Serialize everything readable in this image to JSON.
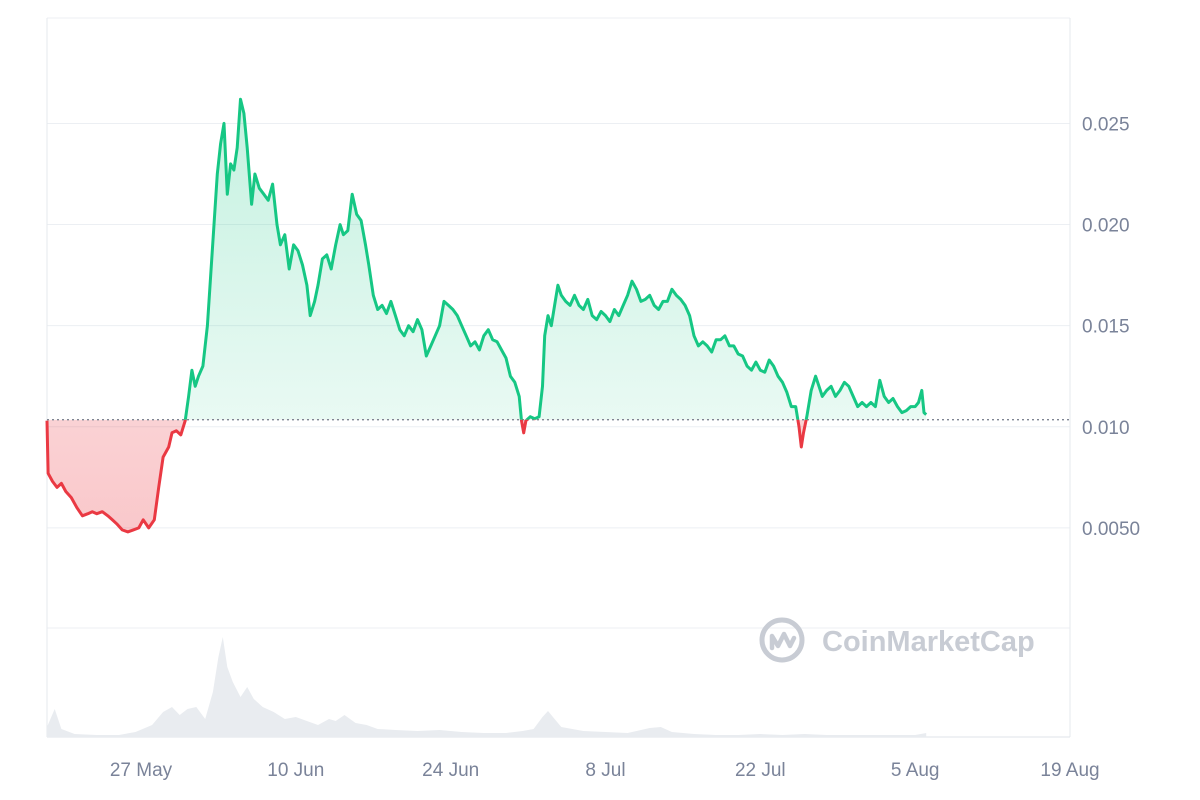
{
  "chart_data": {
    "type": "area",
    "baseline": 0.01035,
    "ylim": [
      0,
      0.0295
    ],
    "y_ticks": [
      {
        "value": 0.025,
        "label": "0.025"
      },
      {
        "value": 0.02,
        "label": "0.020"
      },
      {
        "value": 0.015,
        "label": "0.015"
      },
      {
        "value": 0.01,
        "label": "0.010"
      },
      {
        "value": 0.005,
        "label": "0.0050"
      }
    ],
    "x_ticks": [
      {
        "day": 6,
        "label": "27 May"
      },
      {
        "day": 20,
        "label": "10 Jun"
      },
      {
        "day": 34,
        "label": "24 Jun"
      },
      {
        "day": 48,
        "label": "8 Jul"
      },
      {
        "day": 62,
        "label": "22 Jul"
      },
      {
        "day": 76,
        "label": "5 Aug"
      },
      {
        "day": 90,
        "label": "19 Aug"
      }
    ],
    "x_range_days": [
      -2.5,
      90.0
    ],
    "price_series": [
      [
        -2.5,
        0.0103
      ],
      [
        -2.4,
        0.0077
      ],
      [
        -2.0,
        0.0073
      ],
      [
        -1.6,
        0.007
      ],
      [
        -1.2,
        0.0072
      ],
      [
        -0.8,
        0.0068
      ],
      [
        -0.3,
        0.0065
      ],
      [
        0.2,
        0.006
      ],
      [
        0.7,
        0.0056
      ],
      [
        1.2,
        0.0057
      ],
      [
        1.6,
        0.0058
      ],
      [
        2.0,
        0.0057
      ],
      [
        2.5,
        0.0058
      ],
      [
        3.0,
        0.0056
      ],
      [
        3.4,
        0.0054
      ],
      [
        3.8,
        0.0052
      ],
      [
        4.3,
        0.0049
      ],
      [
        4.8,
        0.0048
      ],
      [
        5.3,
        0.0049
      ],
      [
        5.8,
        0.005
      ],
      [
        6.2,
        0.0054
      ],
      [
        6.7,
        0.005
      ],
      [
        7.2,
        0.0054
      ],
      [
        7.6,
        0.007
      ],
      [
        8.0,
        0.0085
      ],
      [
        8.5,
        0.009
      ],
      [
        8.8,
        0.0097
      ],
      [
        9.2,
        0.0098
      ],
      [
        9.6,
        0.0096
      ],
      [
        10.0,
        0.0103
      ],
      [
        10.3,
        0.0115
      ],
      [
        10.6,
        0.0128
      ],
      [
        10.9,
        0.012
      ],
      [
        11.2,
        0.0125
      ],
      [
        11.6,
        0.013
      ],
      [
        12.0,
        0.015
      ],
      [
        12.3,
        0.0175
      ],
      [
        12.6,
        0.02
      ],
      [
        12.9,
        0.0225
      ],
      [
        13.2,
        0.024
      ],
      [
        13.5,
        0.025
      ],
      [
        13.8,
        0.0215
      ],
      [
        14.1,
        0.023
      ],
      [
        14.4,
        0.0227
      ],
      [
        14.7,
        0.0238
      ],
      [
        15.0,
        0.0262
      ],
      [
        15.3,
        0.0255
      ],
      [
        15.6,
        0.0238
      ],
      [
        16.0,
        0.021
      ],
      [
        16.3,
        0.0225
      ],
      [
        16.7,
        0.0218
      ],
      [
        17.1,
        0.0215
      ],
      [
        17.5,
        0.0212
      ],
      [
        17.9,
        0.022
      ],
      [
        18.3,
        0.02
      ],
      [
        18.6,
        0.019
      ],
      [
        19.0,
        0.0195
      ],
      [
        19.4,
        0.0178
      ],
      [
        19.8,
        0.019
      ],
      [
        20.2,
        0.0187
      ],
      [
        20.6,
        0.018
      ],
      [
        21.0,
        0.017
      ],
      [
        21.3,
        0.0155
      ],
      [
        21.7,
        0.0162
      ],
      [
        22.0,
        0.017
      ],
      [
        22.4,
        0.0183
      ],
      [
        22.8,
        0.0185
      ],
      [
        23.2,
        0.0178
      ],
      [
        23.6,
        0.019
      ],
      [
        24.0,
        0.02
      ],
      [
        24.3,
        0.0195
      ],
      [
        24.7,
        0.0197
      ],
      [
        25.1,
        0.0215
      ],
      [
        25.5,
        0.0205
      ],
      [
        25.9,
        0.0202
      ],
      [
        26.3,
        0.019
      ],
      [
        26.6,
        0.018
      ],
      [
        27.0,
        0.0165
      ],
      [
        27.4,
        0.0158
      ],
      [
        27.8,
        0.016
      ],
      [
        28.2,
        0.0156
      ],
      [
        28.6,
        0.0162
      ],
      [
        29.0,
        0.0155
      ],
      [
        29.4,
        0.0148
      ],
      [
        29.8,
        0.0145
      ],
      [
        30.2,
        0.015
      ],
      [
        30.6,
        0.0147
      ],
      [
        31.0,
        0.0153
      ],
      [
        31.4,
        0.0148
      ],
      [
        31.8,
        0.0135
      ],
      [
        32.2,
        0.014
      ],
      [
        32.6,
        0.0145
      ],
      [
        33.0,
        0.015
      ],
      [
        33.4,
        0.0162
      ],
      [
        33.8,
        0.016
      ],
      [
        34.2,
        0.0158
      ],
      [
        34.6,
        0.0155
      ],
      [
        35.0,
        0.015
      ],
      [
        35.4,
        0.0145
      ],
      [
        35.8,
        0.014
      ],
      [
        36.2,
        0.0142
      ],
      [
        36.6,
        0.0138
      ],
      [
        37.0,
        0.0145
      ],
      [
        37.4,
        0.0148
      ],
      [
        37.8,
        0.0143
      ],
      [
        38.2,
        0.0142
      ],
      [
        38.6,
        0.0138
      ],
      [
        39.0,
        0.0134
      ],
      [
        39.4,
        0.0125
      ],
      [
        39.8,
        0.0122
      ],
      [
        40.2,
        0.0115
      ],
      [
        40.4,
        0.0103
      ],
      [
        40.6,
        0.0097
      ],
      [
        40.8,
        0.0103
      ],
      [
        41.2,
        0.0105
      ],
      [
        41.6,
        0.0104
      ],
      [
        42.0,
        0.0105
      ],
      [
        42.3,
        0.012
      ],
      [
        42.5,
        0.0145
      ],
      [
        42.8,
        0.0155
      ],
      [
        43.1,
        0.015
      ],
      [
        43.4,
        0.016
      ],
      [
        43.7,
        0.017
      ],
      [
        44.0,
        0.0165
      ],
      [
        44.4,
        0.0162
      ],
      [
        44.8,
        0.016
      ],
      [
        45.2,
        0.0165
      ],
      [
        45.6,
        0.016
      ],
      [
        46.0,
        0.0158
      ],
      [
        46.4,
        0.0163
      ],
      [
        46.8,
        0.0155
      ],
      [
        47.2,
        0.0153
      ],
      [
        47.6,
        0.0157
      ],
      [
        48.0,
        0.0155
      ],
      [
        48.4,
        0.0152
      ],
      [
        48.8,
        0.0158
      ],
      [
        49.2,
        0.0155
      ],
      [
        49.6,
        0.016
      ],
      [
        50.0,
        0.0165
      ],
      [
        50.4,
        0.0172
      ],
      [
        50.8,
        0.0168
      ],
      [
        51.2,
        0.0162
      ],
      [
        51.6,
        0.0163
      ],
      [
        52.0,
        0.0165
      ],
      [
        52.4,
        0.016
      ],
      [
        52.8,
        0.0158
      ],
      [
        53.2,
        0.0162
      ],
      [
        53.6,
        0.0162
      ],
      [
        54.0,
        0.0168
      ],
      [
        54.4,
        0.0165
      ],
      [
        54.8,
        0.0163
      ],
      [
        55.2,
        0.016
      ],
      [
        55.6,
        0.0155
      ],
      [
        56.0,
        0.0145
      ],
      [
        56.4,
        0.014
      ],
      [
        56.8,
        0.0142
      ],
      [
        57.2,
        0.014
      ],
      [
        57.6,
        0.0137
      ],
      [
        58.0,
        0.0143
      ],
      [
        58.4,
        0.0143
      ],
      [
        58.8,
        0.0145
      ],
      [
        59.2,
        0.014
      ],
      [
        59.6,
        0.014
      ],
      [
        60.0,
        0.0136
      ],
      [
        60.4,
        0.0135
      ],
      [
        60.8,
        0.013
      ],
      [
        61.2,
        0.0128
      ],
      [
        61.6,
        0.0132
      ],
      [
        62.0,
        0.0128
      ],
      [
        62.4,
        0.0127
      ],
      [
        62.8,
        0.0133
      ],
      [
        63.2,
        0.013
      ],
      [
        63.6,
        0.0125
      ],
      [
        64.0,
        0.0122
      ],
      [
        64.4,
        0.0117
      ],
      [
        64.8,
        0.011
      ],
      [
        65.2,
        0.011
      ],
      [
        65.5,
        0.01
      ],
      [
        65.7,
        0.009
      ],
      [
        65.9,
        0.0097
      ],
      [
        66.2,
        0.0105
      ],
      [
        66.6,
        0.0118
      ],
      [
        67.0,
        0.0125
      ],
      [
        67.3,
        0.012
      ],
      [
        67.6,
        0.0115
      ],
      [
        68.0,
        0.0118
      ],
      [
        68.4,
        0.012
      ],
      [
        68.8,
        0.0115
      ],
      [
        69.2,
        0.0118
      ],
      [
        69.6,
        0.0122
      ],
      [
        70.0,
        0.012
      ],
      [
        70.4,
        0.0115
      ],
      [
        70.8,
        0.011
      ],
      [
        71.2,
        0.0112
      ],
      [
        71.6,
        0.011
      ],
      [
        72.0,
        0.0112
      ],
      [
        72.4,
        0.011
      ],
      [
        72.8,
        0.0123
      ],
      [
        73.2,
        0.0115
      ],
      [
        73.6,
        0.0112
      ],
      [
        74.0,
        0.0114
      ],
      [
        74.4,
        0.011
      ],
      [
        74.8,
        0.0107
      ],
      [
        75.2,
        0.0108
      ],
      [
        75.6,
        0.011
      ],
      [
        76.0,
        0.011
      ],
      [
        76.3,
        0.0112
      ],
      [
        76.6,
        0.0118
      ],
      [
        76.8,
        0.0107
      ],
      [
        77.0,
        0.0106
      ]
    ],
    "volume_series": [
      [
        -2.5,
        0.1
      ],
      [
        -1.8,
        0.28
      ],
      [
        -1.2,
        0.08
      ],
      [
        0.0,
        0.03
      ],
      [
        2.0,
        0.02
      ],
      [
        4.0,
        0.02
      ],
      [
        5.5,
        0.05
      ],
      [
        7.0,
        0.12
      ],
      [
        8.0,
        0.25
      ],
      [
        8.8,
        0.3
      ],
      [
        9.5,
        0.22
      ],
      [
        10.2,
        0.28
      ],
      [
        11.0,
        0.3
      ],
      [
        11.8,
        0.18
      ],
      [
        12.5,
        0.45
      ],
      [
        13.0,
        0.8
      ],
      [
        13.4,
        1.0
      ],
      [
        13.8,
        0.7
      ],
      [
        14.3,
        0.55
      ],
      [
        15.0,
        0.4
      ],
      [
        15.6,
        0.5
      ],
      [
        16.2,
        0.38
      ],
      [
        17.0,
        0.3
      ],
      [
        18.0,
        0.25
      ],
      [
        19.0,
        0.18
      ],
      [
        20.0,
        0.2
      ],
      [
        21.0,
        0.16
      ],
      [
        22.0,
        0.12
      ],
      [
        23.0,
        0.18
      ],
      [
        23.6,
        0.16
      ],
      [
        24.4,
        0.22
      ],
      [
        25.4,
        0.14
      ],
      [
        26.4,
        0.12
      ],
      [
        27.4,
        0.08
      ],
      [
        29.0,
        0.07
      ],
      [
        31.0,
        0.06
      ],
      [
        33.0,
        0.07
      ],
      [
        35.0,
        0.05
      ],
      [
        37.0,
        0.04
      ],
      [
        39.0,
        0.04
      ],
      [
        40.5,
        0.06
      ],
      [
        41.5,
        0.08
      ],
      [
        42.3,
        0.2
      ],
      [
        42.8,
        0.26
      ],
      [
        43.4,
        0.18
      ],
      [
        44.0,
        0.1
      ],
      [
        46.0,
        0.06
      ],
      [
        48.0,
        0.05
      ],
      [
        50.0,
        0.04
      ],
      [
        52.0,
        0.09
      ],
      [
        53.0,
        0.1
      ],
      [
        54.0,
        0.05
      ],
      [
        56.0,
        0.03
      ],
      [
        58.0,
        0.02
      ],
      [
        60.0,
        0.02
      ],
      [
        62.0,
        0.03
      ],
      [
        64.0,
        0.02
      ],
      [
        66.0,
        0.03
      ],
      [
        68.0,
        0.02
      ],
      [
        70.0,
        0.02
      ],
      [
        72.0,
        0.02
      ],
      [
        74.0,
        0.02
      ],
      [
        76.0,
        0.02
      ],
      [
        77.0,
        0.04
      ]
    ],
    "colors": {
      "up": "#16c784",
      "down": "#ea3943",
      "up_fill": "#16c784",
      "down_fill": "#ea3943",
      "grid": "#eceff3",
      "baseline": "#7f8593",
      "volume": "#eff2f5",
      "tick_text": "#7a8399"
    },
    "grid": true
  },
  "watermark": {
    "text": "CoinMarketCap",
    "icon": "coinmarketcap-logo"
  }
}
